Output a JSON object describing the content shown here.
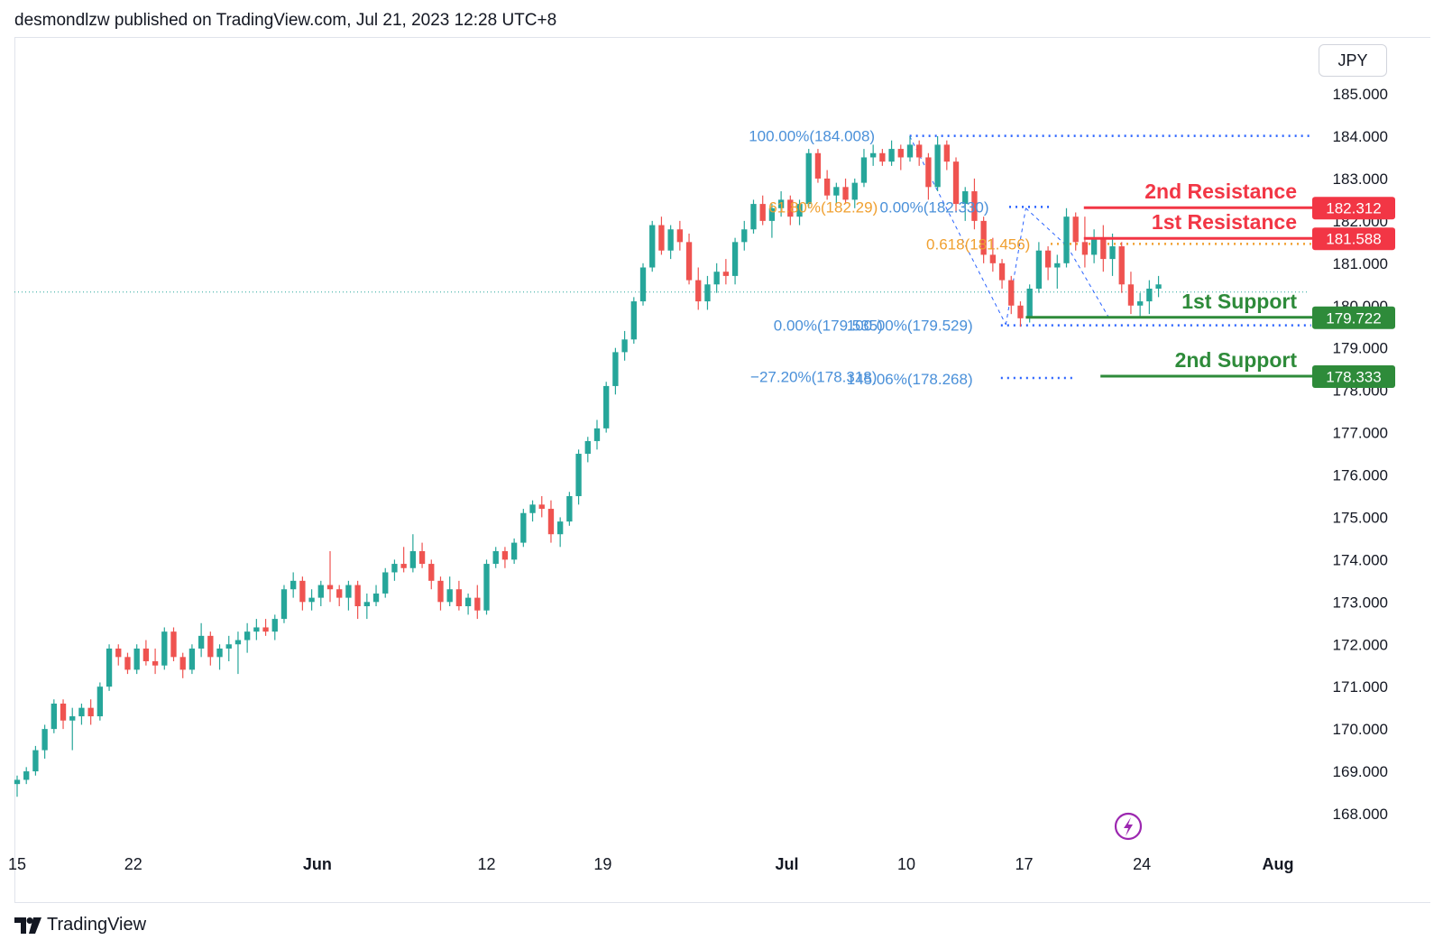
{
  "header": {
    "published_text": "desmondlzw published on TradingView.com, Jul 21, 2023 12:28 UTC+8"
  },
  "footer": {
    "brand": "TradingView"
  },
  "currency": "JPY",
  "colors": {
    "up": "#26a69a",
    "down": "#ef5350",
    "resistance": "#f23645",
    "support": "#2e8b3a",
    "fib": "#2962ff",
    "fib_text": "#4a90d9",
    "fib_gold": "#f0a030",
    "current": "#26a69a",
    "alert": "#9c27b0"
  },
  "chart_data": {
    "type": "candlestick",
    "title": "",
    "ylim": [
      168.0,
      185.5
    ],
    "y_ticks": [
      "185.000",
      "184.000",
      "183.000",
      "182.000",
      "181.000",
      "180.000",
      "179.000",
      "178.000",
      "177.000",
      "176.000",
      "175.000",
      "174.000",
      "173.000",
      "172.000",
      "171.000",
      "170.000",
      "169.000",
      "168.000"
    ],
    "x_ticks": [
      {
        "label": "15",
        "x": 0.2
      },
      {
        "label": "22",
        "x": 7.2
      },
      {
        "label": "Jun",
        "x": 18.3
      },
      {
        "label": "12",
        "x": 28.5
      },
      {
        "label": "19",
        "x": 35.5
      },
      {
        "label": "Jul",
        "x": 46.6
      },
      {
        "label": "10",
        "x": 53.8
      },
      {
        "label": "17",
        "x": 60.9
      },
      {
        "label": "24",
        "x": 68.0
      },
      {
        "label": "Aug",
        "x": 76.2
      }
    ],
    "x_range": [
      0,
      78.2
    ],
    "current_price": 180.32,
    "levels": [
      {
        "name": "2nd Resistance",
        "value": 182.312,
        "label": "182.312",
        "kind": "resistance",
        "x_start": 64.5
      },
      {
        "name": "1st Resistance",
        "value": 181.588,
        "label": "181.588",
        "kind": "resistance",
        "x_start": 64.5
      },
      {
        "name": "1st Support",
        "value": 179.722,
        "label": "179.722",
        "kind": "support",
        "x_start": 61.0
      },
      {
        "name": "2nd Support",
        "value": 178.333,
        "label": "178.333",
        "kind": "support",
        "x_start": 65.5
      }
    ],
    "fib_labels": [
      {
        "text": "100.00%(184.008)",
        "value": 184.008,
        "x": 44.3,
        "color": "fib_text"
      },
      {
        "text": "61.80%(182.29)",
        "value": 182.33,
        "x": 45.5,
        "color": "fib_gold"
      },
      {
        "text": "0.00%(182.330)",
        "value": 182.33,
        "x": 52.2,
        "color": "fib_text"
      },
      {
        "text": "0.618(181.456)",
        "value": 181.456,
        "x": 55.0,
        "color": "fib_gold"
      },
      {
        "text": "0.00%(179.535)",
        "value": 179.535,
        "x": 45.8,
        "color": "fib_text"
      },
      {
        "text": "100.00%(179.529)",
        "value": 179.535,
        "x": 50.2,
        "color": "fib_text"
      },
      {
        "text": "−27.20%(178.318)",
        "value": 178.318,
        "x": 44.4,
        "color": "fib_text"
      },
      {
        "text": "145.06%(178.268)",
        "value": 178.268,
        "x": 50.2,
        "color": "fib_text"
      }
    ],
    "fib_lines": [
      {
        "value": 184.008,
        "x1": 54.0,
        "x2": 78.2,
        "color": "fib"
      },
      {
        "value": 182.33,
        "x1": 60.0,
        "x2": 62.5,
        "color": "fib"
      },
      {
        "value": 181.456,
        "x1": 62.5,
        "x2": 78.2,
        "color": "fib_gold"
      },
      {
        "value": 179.535,
        "x1": 59.5,
        "x2": 78.2,
        "color": "fib"
      },
      {
        "value": 178.29,
        "x1": 59.5,
        "x2": 64.0,
        "color": "fib"
      }
    ],
    "candles": [
      [
        168.7,
        168.9,
        168.4,
        168.8
      ],
      [
        168.8,
        169.1,
        168.7,
        169.0
      ],
      [
        169.0,
        169.6,
        168.9,
        169.5
      ],
      [
        169.5,
        170.1,
        169.3,
        170.0
      ],
      [
        170.0,
        170.7,
        169.9,
        170.6
      ],
      [
        170.6,
        170.7,
        170.0,
        170.2
      ],
      [
        170.2,
        170.5,
        169.5,
        170.3
      ],
      [
        170.3,
        170.6,
        170.1,
        170.5
      ],
      [
        170.5,
        170.7,
        170.1,
        170.3
      ],
      [
        170.3,
        171.1,
        170.2,
        171.0
      ],
      [
        171.0,
        172.0,
        170.9,
        171.9
      ],
      [
        171.9,
        172.0,
        171.5,
        171.7
      ],
      [
        171.7,
        171.8,
        171.3,
        171.4
      ],
      [
        171.4,
        172.0,
        171.3,
        171.9
      ],
      [
        171.9,
        172.1,
        171.5,
        171.6
      ],
      [
        171.6,
        171.9,
        171.3,
        171.5
      ],
      [
        171.5,
        172.4,
        171.4,
        172.3
      ],
      [
        172.3,
        172.4,
        171.6,
        171.7
      ],
      [
        171.7,
        171.8,
        171.2,
        171.4
      ],
      [
        171.4,
        172.0,
        171.3,
        171.9
      ],
      [
        171.9,
        172.5,
        171.7,
        172.2
      ],
      [
        172.2,
        172.3,
        171.5,
        171.7
      ],
      [
        171.7,
        172.0,
        171.4,
        171.9
      ],
      [
        171.9,
        172.2,
        171.6,
        172.0
      ],
      [
        172.0,
        172.3,
        171.3,
        172.1
      ],
      [
        172.1,
        172.5,
        171.8,
        172.3
      ],
      [
        172.3,
        172.6,
        172.1,
        172.4
      ],
      [
        172.4,
        172.6,
        172.2,
        172.3
      ],
      [
        172.3,
        172.7,
        172.1,
        172.6
      ],
      [
        172.6,
        173.4,
        172.5,
        173.3
      ],
      [
        173.3,
        173.7,
        173.1,
        173.5
      ],
      [
        173.5,
        173.6,
        172.8,
        173.0
      ],
      [
        173.0,
        173.3,
        172.8,
        173.1
      ],
      [
        173.1,
        173.5,
        172.9,
        173.4
      ],
      [
        173.4,
        174.2,
        173.0,
        173.3
      ],
      [
        173.3,
        173.4,
        172.9,
        173.1
      ],
      [
        173.1,
        173.5,
        172.8,
        173.4
      ],
      [
        173.4,
        173.5,
        172.6,
        172.9
      ],
      [
        172.9,
        173.2,
        172.6,
        173.0
      ],
      [
        173.0,
        173.4,
        172.9,
        173.2
      ],
      [
        173.2,
        173.8,
        173.1,
        173.7
      ],
      [
        173.7,
        174.0,
        173.5,
        173.9
      ],
      [
        173.9,
        174.3,
        173.7,
        173.8
      ],
      [
        173.8,
        174.6,
        173.7,
        174.2
      ],
      [
        174.2,
        174.4,
        173.8,
        173.9
      ],
      [
        173.9,
        174.0,
        173.3,
        173.5
      ],
      [
        173.5,
        173.6,
        172.8,
        173.0
      ],
      [
        173.0,
        173.6,
        172.9,
        173.3
      ],
      [
        173.3,
        173.5,
        172.8,
        172.9
      ],
      [
        172.9,
        173.2,
        172.7,
        173.1
      ],
      [
        173.1,
        173.4,
        172.6,
        172.8
      ],
      [
        172.8,
        174.0,
        172.7,
        173.9
      ],
      [
        173.9,
        174.3,
        173.8,
        174.2
      ],
      [
        174.2,
        174.3,
        173.8,
        174.0
      ],
      [
        174.0,
        174.5,
        173.9,
        174.4
      ],
      [
        174.4,
        175.2,
        174.3,
        175.1
      ],
      [
        175.1,
        175.4,
        174.9,
        175.3
      ],
      [
        175.3,
        175.5,
        175.0,
        175.2
      ],
      [
        175.2,
        175.4,
        174.4,
        174.6
      ],
      [
        174.6,
        175.0,
        174.3,
        174.9
      ],
      [
        174.9,
        175.6,
        174.8,
        175.5
      ],
      [
        175.5,
        176.6,
        175.3,
        176.5
      ],
      [
        176.5,
        176.9,
        176.3,
        176.8
      ],
      [
        176.8,
        177.3,
        176.6,
        177.1
      ],
      [
        177.1,
        178.2,
        177.0,
        178.1
      ],
      [
        178.1,
        179.0,
        177.9,
        178.9
      ],
      [
        178.9,
        179.4,
        178.7,
        179.2
      ],
      [
        179.2,
        180.2,
        179.1,
        180.1
      ],
      [
        180.1,
        181.0,
        180.0,
        180.9
      ],
      [
        180.9,
        182.0,
        180.8,
        181.9
      ],
      [
        181.9,
        182.1,
        181.2,
        181.3
      ],
      [
        181.3,
        181.9,
        181.1,
        181.8
      ],
      [
        181.8,
        182.0,
        181.3,
        181.5
      ],
      [
        181.5,
        181.7,
        180.5,
        180.6
      ],
      [
        180.6,
        180.9,
        179.9,
        180.1
      ],
      [
        180.1,
        180.7,
        179.9,
        180.5
      ],
      [
        180.5,
        181.0,
        180.3,
        180.8
      ],
      [
        180.8,
        181.1,
        180.5,
        180.7
      ],
      [
        180.7,
        181.6,
        180.5,
        181.5
      ],
      [
        181.5,
        182.0,
        181.3,
        181.8
      ],
      [
        181.8,
        182.5,
        181.7,
        182.4
      ],
      [
        182.4,
        182.6,
        181.9,
        182.0
      ],
      [
        182.0,
        182.4,
        181.6,
        182.3
      ],
      [
        182.3,
        182.7,
        182.1,
        182.5
      ],
      [
        182.5,
        182.6,
        181.9,
        182.1
      ],
      [
        182.1,
        182.5,
        181.9,
        182.4
      ],
      [
        182.4,
        183.7,
        182.3,
        183.6
      ],
      [
        183.6,
        183.7,
        182.9,
        183.0
      ],
      [
        183.0,
        183.2,
        182.5,
        182.6
      ],
      [
        182.6,
        182.9,
        182.4,
        182.8
      ],
      [
        182.8,
        183.0,
        182.4,
        182.5
      ],
      [
        182.5,
        183.0,
        182.3,
        182.9
      ],
      [
        182.9,
        183.7,
        182.8,
        183.5
      ],
      [
        183.5,
        183.8,
        183.3,
        183.6
      ],
      [
        183.6,
        183.7,
        183.3,
        183.4
      ],
      [
        183.4,
        183.9,
        183.3,
        183.7
      ],
      [
        183.7,
        183.8,
        183.2,
        183.5
      ],
      [
        183.5,
        184.0,
        183.4,
        183.8
      ],
      [
        183.8,
        183.9,
        183.3,
        183.5
      ],
      [
        183.5,
        183.6,
        182.5,
        182.8
      ],
      [
        182.8,
        184.0,
        182.7,
        183.8
      ],
      [
        183.8,
        183.9,
        183.2,
        183.4
      ],
      [
        183.4,
        183.5,
        182.2,
        182.4
      ],
      [
        182.4,
        182.8,
        182.0,
        182.7
      ],
      [
        182.7,
        183.0,
        181.8,
        182.0
      ],
      [
        182.0,
        182.1,
        181.0,
        181.2
      ],
      [
        181.2,
        181.6,
        180.8,
        181.0
      ],
      [
        181.0,
        181.1,
        180.4,
        180.6
      ],
      [
        180.6,
        180.7,
        179.8,
        180.0
      ],
      [
        180.0,
        180.1,
        179.5,
        179.7
      ],
      [
        179.7,
        180.5,
        179.6,
        180.4
      ],
      [
        180.4,
        181.5,
        180.3,
        181.3
      ],
      [
        181.3,
        181.4,
        180.6,
        180.9
      ],
      [
        180.9,
        181.2,
        180.4,
        181.0
      ],
      [
        181.0,
        182.3,
        180.9,
        182.1
      ],
      [
        182.1,
        182.2,
        181.3,
        181.5
      ],
      [
        181.5,
        182.1,
        180.9,
        181.2
      ],
      [
        181.2,
        181.8,
        181.0,
        181.6
      ],
      [
        181.6,
        181.9,
        180.8,
        181.1
      ],
      [
        181.1,
        181.7,
        180.7,
        181.4
      ],
      [
        181.4,
        181.5,
        180.3,
        180.5
      ],
      [
        180.5,
        180.8,
        179.8,
        180.0
      ],
      [
        180.0,
        180.3,
        179.7,
        180.1
      ],
      [
        180.1,
        180.6,
        179.8,
        180.4
      ],
      [
        180.4,
        180.7,
        180.2,
        180.5
      ]
    ]
  }
}
